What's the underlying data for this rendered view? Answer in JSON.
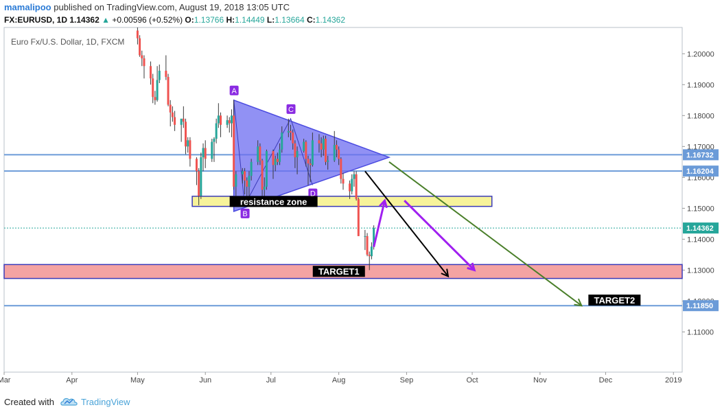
{
  "header": {
    "author": "mamalipoo",
    "published": "published on TradingView.com, August 19, 2018 13:05 UTC",
    "symbol": "FX:EURUSD, 1D",
    "last": "1.14362",
    "change_arrow": "▲",
    "change": "+0.00596 (+0.52%)",
    "open_label": "O:",
    "open": "1.13766",
    "high_label": "H:",
    "high": "1.14449",
    "low_label": "L:",
    "low": "1.13664",
    "close_label": "C:",
    "close": "1.14362"
  },
  "footer": {
    "created_with": "Created with",
    "brand": "TradingView",
    "brand_icon": "tradingview-cloud-icon"
  },
  "colors": {
    "up_candle": "#26a69a",
    "down_candle": "#ef5350",
    "triangle_fill": "#6c6cf0",
    "horizontal_line": "#6b9bd8",
    "target1_zone": "#f4a3a3",
    "resistance_zone": "#f7f39a",
    "green_arrow": "#4a7f2a",
    "purple_arrow": "#a020f0",
    "black_arrow": "#000000"
  },
  "chart_data": {
    "type": "candlestick",
    "title": "Euro Fx/U.S. Dollar, 1D, FXCM",
    "x_range": [
      "2018-03-01",
      "2019-01-05"
    ],
    "ylim": [
      1.097,
      1.2085
    ],
    "x_tick_labels": [
      "Mar",
      "Apr",
      "May",
      "Jun",
      "Jul",
      "Aug",
      "Sep",
      "Oct",
      "Nov",
      "Dec",
      "2019"
    ],
    "x_ticks": [
      "2018-03-01",
      "2018-04-01",
      "2018-05-01",
      "2018-06-01",
      "2018-07-01",
      "2018-08-01",
      "2018-09-01",
      "2018-10-01",
      "2018-11-01",
      "2018-12-01",
      "2019-01-01"
    ],
    "y_ticks": [
      "1.11000",
      "1.12000",
      "1.13000",
      "1.14000",
      "1.15000",
      "1.16000",
      "1.17000",
      "1.18000",
      "1.19000",
      "1.20000"
    ],
    "price_labels": [
      {
        "value": "1.16732",
        "color": "#6b9bd8"
      },
      {
        "value": "1.16204",
        "color": "#6b9bd8"
      },
      {
        "value": "1.14362",
        "color": "#26a69a"
      },
      {
        "value": "1.11850",
        "color": "#6b9bd8"
      }
    ],
    "horizontal_lines": [
      1.16732,
      1.16204,
      1.1185
    ],
    "last_price_line": 1.14362,
    "candles": [
      {
        "date": "2018-05-01",
        "o": 1.2075,
        "h": 1.2085,
        "l": 1.203,
        "c": 1.205
      },
      {
        "date": "2018-05-02",
        "o": 1.205,
        "h": 1.206,
        "l": 1.199,
        "c": 1.1995
      },
      {
        "date": "2018-05-03",
        "o": 1.1995,
        "h": 1.201,
        "l": 1.196,
        "c": 1.1985
      },
      {
        "date": "2018-05-04",
        "o": 1.1985,
        "h": 1.1995,
        "l": 1.192,
        "c": 1.196
      },
      {
        "date": "2018-05-07",
        "o": 1.196,
        "h": 1.1975,
        "l": 1.19,
        "c": 1.192
      },
      {
        "date": "2018-05-08",
        "o": 1.192,
        "h": 1.1935,
        "l": 1.184,
        "c": 1.186
      },
      {
        "date": "2018-05-09",
        "o": 1.186,
        "h": 1.188,
        "l": 1.1835,
        "c": 1.185
      },
      {
        "date": "2018-05-10",
        "o": 1.185,
        "h": 1.196,
        "l": 1.1845,
        "c": 1.1915
      },
      {
        "date": "2018-05-11",
        "o": 1.1915,
        "h": 1.1965,
        "l": 1.1905,
        "c": 1.1945
      },
      {
        "date": "2018-05-14",
        "o": 1.1945,
        "h": 1.1995,
        "l": 1.1915,
        "c": 1.1925
      },
      {
        "date": "2018-05-15",
        "o": 1.1925,
        "h": 1.1935,
        "l": 1.183,
        "c": 1.1835
      },
      {
        "date": "2018-05-16",
        "o": 1.1835,
        "h": 1.185,
        "l": 1.1765,
        "c": 1.181
      },
      {
        "date": "2018-05-17",
        "o": 1.181,
        "h": 1.183,
        "l": 1.178,
        "c": 1.1795
      },
      {
        "date": "2018-05-18",
        "o": 1.1795,
        "h": 1.1815,
        "l": 1.175,
        "c": 1.177
      },
      {
        "date": "2018-05-21",
        "o": 1.177,
        "h": 1.178,
        "l": 1.1715,
        "c": 1.179
      },
      {
        "date": "2018-05-22",
        "o": 1.179,
        "h": 1.183,
        "l": 1.176,
        "c": 1.178
      },
      {
        "date": "2018-05-23",
        "o": 1.178,
        "h": 1.179,
        "l": 1.1675,
        "c": 1.17
      },
      {
        "date": "2018-05-24",
        "o": 1.17,
        "h": 1.173,
        "l": 1.168,
        "c": 1.172
      },
      {
        "date": "2018-05-25",
        "o": 1.172,
        "h": 1.173,
        "l": 1.1635,
        "c": 1.166
      },
      {
        "date": "2018-05-28",
        "o": 1.166,
        "h": 1.1665,
        "l": 1.1575,
        "c": 1.162
      },
      {
        "date": "2018-05-29",
        "o": 1.162,
        "h": 1.163,
        "l": 1.151,
        "c": 1.154
      },
      {
        "date": "2018-05-30",
        "o": 1.154,
        "h": 1.168,
        "l": 1.153,
        "c": 1.1665
      },
      {
        "date": "2018-05-31",
        "o": 1.1665,
        "h": 1.171,
        "l": 1.162,
        "c": 1.1695
      },
      {
        "date": "2018-06-01",
        "o": 1.1695,
        "h": 1.172,
        "l": 1.163,
        "c": 1.166
      },
      {
        "date": "2018-06-04",
        "o": 1.166,
        "h": 1.1725,
        "l": 1.165,
        "c": 1.1715
      },
      {
        "date": "2018-06-05",
        "o": 1.1715,
        "h": 1.173,
        "l": 1.165,
        "c": 1.1725
      },
      {
        "date": "2018-06-06",
        "o": 1.1725,
        "h": 1.179,
        "l": 1.171,
        "c": 1.1775
      },
      {
        "date": "2018-06-07",
        "o": 1.1775,
        "h": 1.184,
        "l": 1.176,
        "c": 1.18
      },
      {
        "date": "2018-06-08",
        "o": 1.18,
        "h": 1.181,
        "l": 1.173,
        "c": 1.177
      },
      {
        "date": "2018-06-11",
        "o": 1.177,
        "h": 1.18,
        "l": 1.176,
        "c": 1.1785
      },
      {
        "date": "2018-06-12",
        "o": 1.1785,
        "h": 1.1795,
        "l": 1.1745,
        "c": 1.1775
      },
      {
        "date": "2018-06-13",
        "o": 1.1775,
        "h": 1.182,
        "l": 1.173,
        "c": 1.18
      },
      {
        "date": "2018-06-14",
        "o": 1.18,
        "h": 1.185,
        "l": 1.156,
        "c": 1.157
      },
      {
        "date": "2018-06-15",
        "o": 1.157,
        "h": 1.162,
        "l": 1.154,
        "c": 1.161
      },
      {
        "date": "2018-06-18",
        "o": 1.161,
        "h": 1.163,
        "l": 1.158,
        "c": 1.162
      },
      {
        "date": "2018-06-19",
        "o": 1.162,
        "h": 1.163,
        "l": 1.1545,
        "c": 1.159
      },
      {
        "date": "2018-06-20",
        "o": 1.159,
        "h": 1.16,
        "l": 1.153,
        "c": 1.157
      },
      {
        "date": "2018-06-21",
        "o": 1.157,
        "h": 1.162,
        "l": 1.151,
        "c": 1.1605
      },
      {
        "date": "2018-06-22",
        "o": 1.1605,
        "h": 1.166,
        "l": 1.159,
        "c": 1.165
      },
      {
        "date": "2018-06-25",
        "o": 1.165,
        "h": 1.172,
        "l": 1.164,
        "c": 1.17
      },
      {
        "date": "2018-06-26",
        "o": 1.17,
        "h": 1.171,
        "l": 1.164,
        "c": 1.1655
      },
      {
        "date": "2018-06-27",
        "o": 1.1655,
        "h": 1.166,
        "l": 1.154,
        "c": 1.156
      },
      {
        "date": "2018-06-28",
        "o": 1.156,
        "h": 1.16,
        "l": 1.153,
        "c": 1.157
      },
      {
        "date": "2018-06-29",
        "o": 1.157,
        "h": 1.169,
        "l": 1.156,
        "c": 1.1685
      },
      {
        "date": "2018-07-02",
        "o": 1.1685,
        "h": 1.169,
        "l": 1.1595,
        "c": 1.164
      },
      {
        "date": "2018-07-03",
        "o": 1.164,
        "h": 1.167,
        "l": 1.162,
        "c": 1.166
      },
      {
        "date": "2018-07-04",
        "o": 1.166,
        "h": 1.168,
        "l": 1.164,
        "c": 1.165
      },
      {
        "date": "2018-07-05",
        "o": 1.165,
        "h": 1.171,
        "l": 1.164,
        "c": 1.169
      },
      {
        "date": "2018-07-06",
        "o": 1.169,
        "h": 1.1765,
        "l": 1.168,
        "c": 1.1745
      },
      {
        "date": "2018-07-09",
        "o": 1.1745,
        "h": 1.179,
        "l": 1.173,
        "c": 1.175
      },
      {
        "date": "2018-07-10",
        "o": 1.175,
        "h": 1.177,
        "l": 1.172,
        "c": 1.1745
      },
      {
        "date": "2018-07-11",
        "o": 1.1745,
        "h": 1.1755,
        "l": 1.169,
        "c": 1.171
      },
      {
        "date": "2018-07-12",
        "o": 1.171,
        "h": 1.172,
        "l": 1.163,
        "c": 1.1665
      },
      {
        "date": "2018-07-13",
        "o": 1.1665,
        "h": 1.17,
        "l": 1.161,
        "c": 1.1685
      },
      {
        "date": "2018-07-16",
        "o": 1.1685,
        "h": 1.1725,
        "l": 1.168,
        "c": 1.1715
      },
      {
        "date": "2018-07-17",
        "o": 1.1715,
        "h": 1.172,
        "l": 1.1635,
        "c": 1.166
      },
      {
        "date": "2018-07-18",
        "o": 1.166,
        "h": 1.167,
        "l": 1.1575,
        "c": 1.1645
      },
      {
        "date": "2018-07-19",
        "o": 1.1645,
        "h": 1.166,
        "l": 1.1585,
        "c": 1.164
      },
      {
        "date": "2018-07-20",
        "o": 1.164,
        "h": 1.1745,
        "l": 1.1635,
        "c": 1.172
      },
      {
        "date": "2018-07-23",
        "o": 1.172,
        "h": 1.174,
        "l": 1.168,
        "c": 1.171
      },
      {
        "date": "2018-07-24",
        "o": 1.171,
        "h": 1.173,
        "l": 1.1665,
        "c": 1.169
      },
      {
        "date": "2018-07-25",
        "o": 1.169,
        "h": 1.1735,
        "l": 1.167,
        "c": 1.1725
      },
      {
        "date": "2018-07-26",
        "o": 1.1725,
        "h": 1.1735,
        "l": 1.164,
        "c": 1.165
      },
      {
        "date": "2018-07-27",
        "o": 1.165,
        "h": 1.167,
        "l": 1.1625,
        "c": 1.1655
      },
      {
        "date": "2018-07-30",
        "o": 1.1655,
        "h": 1.175,
        "l": 1.165,
        "c": 1.1705
      },
      {
        "date": "2018-07-31",
        "o": 1.1705,
        "h": 1.172,
        "l": 1.1665,
        "c": 1.169
      },
      {
        "date": "2018-08-01",
        "o": 1.169,
        "h": 1.17,
        "l": 1.164,
        "c": 1.166
      },
      {
        "date": "2018-08-02",
        "o": 1.166,
        "h": 1.1665,
        "l": 1.158,
        "c": 1.1595
      },
      {
        "date": "2018-08-03",
        "o": 1.1595,
        "h": 1.1615,
        "l": 1.156,
        "c": 1.158
      },
      {
        "date": "2018-08-06",
        "o": 1.158,
        "h": 1.159,
        "l": 1.153,
        "c": 1.1555
      },
      {
        "date": "2018-08-07",
        "o": 1.1555,
        "h": 1.161,
        "l": 1.1545,
        "c": 1.1595
      },
      {
        "date": "2018-08-08",
        "o": 1.1595,
        "h": 1.162,
        "l": 1.157,
        "c": 1.161
      },
      {
        "date": "2018-08-09",
        "o": 1.161,
        "h": 1.162,
        "l": 1.1525,
        "c": 1.153
      },
      {
        "date": "2018-08-10",
        "o": 1.153,
        "h": 1.1535,
        "l": 1.141,
        "c": 1.141
      },
      {
        "date": "2018-08-13",
        "o": 1.141,
        "h": 1.143,
        "l": 1.1365,
        "c": 1.141
      },
      {
        "date": "2018-08-14",
        "o": 1.141,
        "h": 1.142,
        "l": 1.1345,
        "c": 1.135
      },
      {
        "date": "2018-08-15",
        "o": 1.135,
        "h": 1.136,
        "l": 1.13,
        "c": 1.1345
      },
      {
        "date": "2018-08-16",
        "o": 1.1345,
        "h": 1.139,
        "l": 1.1335,
        "c": 1.1376
      },
      {
        "date": "2018-08-17",
        "o": 1.13766,
        "h": 1.14449,
        "l": 1.13664,
        "c": 1.14362
      }
    ],
    "zones": [
      {
        "kind": "resistance",
        "from": "2018-05-26",
        "to": "2018-10-10",
        "low": 1.1515,
        "high": 1.153
      },
      {
        "kind": "target1",
        "from": "2018-03-01",
        "to": "2019-01-05",
        "low": 1.1273,
        "high": 1.1318
      }
    ],
    "triangle": [
      {
        "date": "2018-06-14",
        "price": 1.185
      },
      {
        "date": "2018-08-24",
        "price": 1.1665
      },
      {
        "date": "2018-06-14",
        "price": 1.149
      }
    ],
    "pattern_points": [
      {
        "label": "A",
        "date": "2018-06-14",
        "price": 1.185
      },
      {
        "label": "B",
        "date": "2018-06-19",
        "price": 1.151
      },
      {
        "label": "C",
        "date": "2018-07-10",
        "price": 1.179
      },
      {
        "label": "D",
        "date": "2018-07-20",
        "price": 1.1575
      }
    ],
    "pattern_labels": {
      "A": "A",
      "B": "B",
      "C": "C",
      "D": "D"
    },
    "arrows": [
      {
        "kind": "green",
        "from": {
          "date": "2018-08-24",
          "price": 1.165
        },
        "to": {
          "date": "2018-11-20",
          "price": 1.1185
        }
      },
      {
        "kind": "black",
        "from": {
          "date": "2018-08-13",
          "price": 1.162
        },
        "to": {
          "date": "2018-09-20",
          "price": 1.128
        }
      },
      {
        "kind": "purple-up",
        "from": {
          "date": "2018-08-17",
          "price": 1.1375
        },
        "to": {
          "date": "2018-08-22",
          "price": 1.1525
        }
      },
      {
        "kind": "purple-down",
        "from": {
          "date": "2018-08-31",
          "price": 1.1525
        },
        "to": {
          "date": "2018-10-02",
          "price": 1.13
        }
      }
    ],
    "annotations": {
      "resistance_zone": "resistance zone",
      "target1": "TARGET1",
      "target2": "TARGET2"
    },
    "annotation_anchors": {
      "resistance_zone": {
        "date": "2018-06-14",
        "price": 1.1522
      },
      "target1": {
        "date": "2018-07-22",
        "price": 1.1296
      },
      "target2": {
        "date": "2018-11-25",
        "price": 1.1203
      }
    }
  }
}
